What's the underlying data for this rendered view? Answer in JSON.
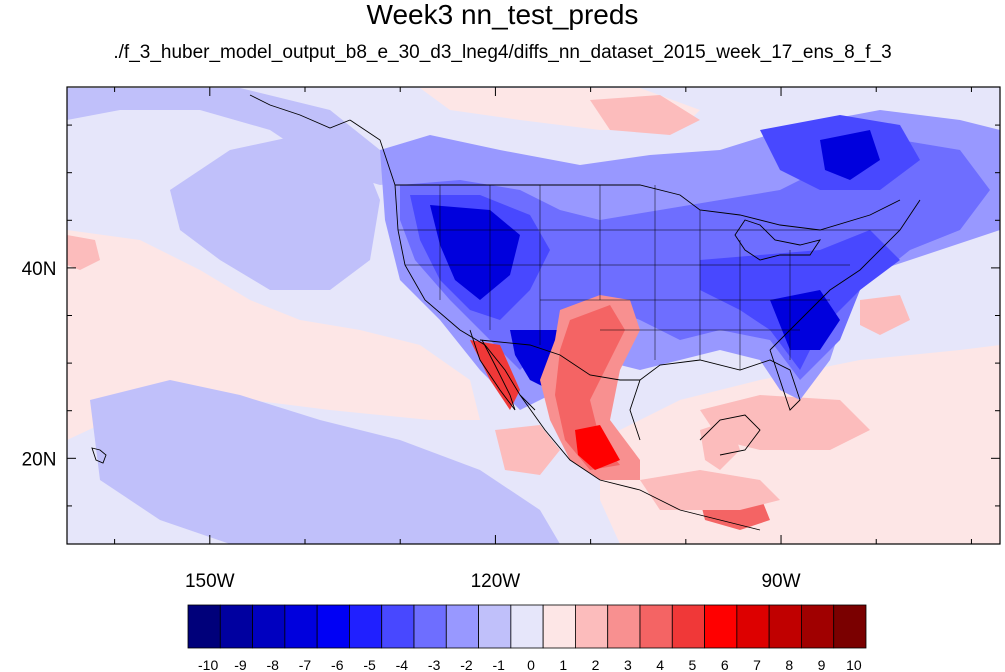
{
  "title": "Week3 nn_test_preds",
  "subtitle": "./f_3_huber_model_output_b8_e_30_d3_lneg4/diffs_nn_dataset_2015_week_17_ens_8_f_3",
  "map": {
    "lon_range": [
      -165,
      -67
    ],
    "lat_range": [
      11,
      59
    ],
    "lon_ticks": [
      {
        "value": -150,
        "label": "150W"
      },
      {
        "value": -120,
        "label": "120W"
      },
      {
        "value": -90,
        "label": "90W"
      }
    ],
    "lat_ticks": [
      {
        "value": 40,
        "label": "40N"
      },
      {
        "value": 20,
        "label": "20N"
      }
    ],
    "colors": {
      "neutral_neg": "#e6e6fa",
      "neutral_pos": "#fde6e6"
    }
  },
  "colorbar": {
    "labels": [
      "-10",
      "-9",
      "-8",
      "-7",
      "-6",
      "-5",
      "-4",
      "-3",
      "-2",
      "-1",
      "0",
      "1",
      "2",
      "3",
      "4",
      "5",
      "6",
      "7",
      "8",
      "9",
      "10"
    ],
    "colors": [
      "#00007a",
      "#0000a0",
      "#0000c0",
      "#0000dd",
      "#0000f5",
      "#2020ff",
      "#4848ff",
      "#6e6eff",
      "#9898ff",
      "#c0c0fa",
      "#e6e6fa",
      "#fde6e6",
      "#fcbcbc",
      "#f89090",
      "#f46464",
      "#f03838",
      "#ff0000",
      "#dd0000",
      "#c00000",
      "#a00000",
      "#7a0000"
    ]
  }
}
